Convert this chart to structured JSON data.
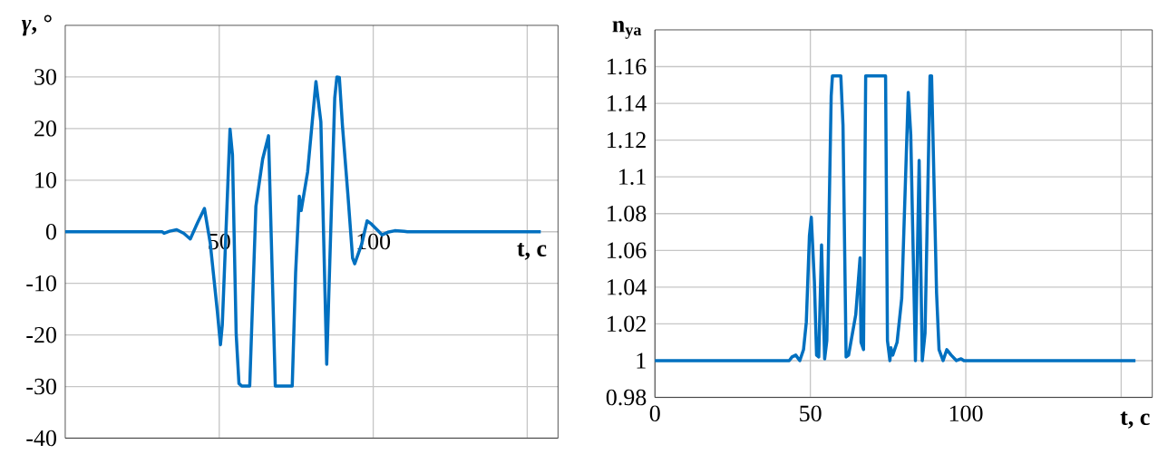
{
  "chart_data": [
    {
      "type": "line",
      "ylabel": "*γ*, °",
      "xlabel": "t, c",
      "color": "#0070c0",
      "grid": true,
      "xlim": [
        0,
        160
      ],
      "ylim": [
        -40,
        40
      ],
      "xticks": [
        50,
        100,
        {
          "value": 150,
          "label": null
        }
      ],
      "yticks": [
        -40,
        -30,
        -20,
        -10,
        0,
        10,
        20,
        30
      ],
      "x": [
        0,
        31.5,
        32.1,
        33.9,
        36.2,
        38.5,
        40.6,
        43,
        45.2,
        47.1,
        49.4,
        50.4,
        51,
        53.5,
        54.3,
        55.5,
        56.4,
        57.3,
        59.9,
        61.9,
        64.1,
        66,
        68.2,
        73.7,
        74.8,
        76,
        76.6,
        78.7,
        80.2,
        81.4,
        83,
        84.9,
        86.3,
        87.5,
        88.2,
        89,
        90,
        91.8,
        93.3,
        94,
        96.3,
        98,
        99.4,
        102.9,
        104.7,
        107,
        110,
        111.1,
        154.4
      ],
      "values": [
        0,
        0,
        -0.3,
        0.1,
        0.4,
        -0.3,
        -1.4,
        1.8,
        4.5,
        -2.3,
        -15.5,
        -21.9,
        -18,
        19.9,
        14.9,
        -19.8,
        -29.4,
        -29.9,
        -29.9,
        4.9,
        14.1,
        18.6,
        -29.9,
        -29.9,
        -8,
        6.9,
        4.1,
        11.6,
        21.3,
        29.1,
        21.3,
        -25.7,
        2,
        25.9,
        30,
        29.9,
        20.6,
        7,
        -5.1,
        -6.2,
        -2.3,
        2.1,
        1.5,
        -0.6,
        -0.1,
        0.2,
        0.1,
        0,
        0
      ]
    },
    {
      "type": "line",
      "ylabel": "n$_{ya}$",
      "xlabel": "t, c",
      "color": "#0070c0",
      "grid": true,
      "xlim": [
        0,
        160
      ],
      "ylim": [
        0.98,
        1.18
      ],
      "xticks": [
        0,
        50,
        100,
        {
          "value": 150,
          "label": null
        }
      ],
      "yticks": [
        0.98,
        1,
        1.02,
        1.04,
        1.06,
        1.08,
        1.1,
        1.12,
        1.14,
        1.16
      ],
      "x": [
        0,
        43.2,
        44.1,
        45.3,
        46.6,
        47.8,
        48.7,
        49.7,
        50.3,
        51.3,
        52,
        52.7,
        53.6,
        54.6,
        55.3,
        56.7,
        57.1,
        59.8,
        60.5,
        61.5,
        62.3,
        64.6,
        66,
        66.3,
        67.1,
        67.8,
        74.2,
        74.8,
        75.6,
        75.9,
        76.5,
        77.9,
        79.4,
        81.5,
        82.3,
        83.8,
        85,
        86,
        86.9,
        88.5,
        89,
        90.6,
        91.4,
        92.7,
        93.9,
        95.3,
        97,
        98.5,
        99.4,
        154.6
      ],
      "values": [
        1,
        1,
        1.002,
        1.003,
        1,
        1.006,
        1.021,
        1.068,
        1.078,
        1.043,
        1.003,
        1.002,
        1.063,
        1.001,
        1.011,
        1.144,
        1.155,
        1.155,
        1.128,
        1.002,
        1.003,
        1.025,
        1.056,
        1.01,
        1.006,
        1.155,
        1.155,
        1.011,
        1,
        1.007,
        1.003,
        1.01,
        1.034,
        1.146,
        1.123,
        1,
        1.109,
        1,
        1.015,
        1.155,
        1.155,
        1.037,
        1.006,
        1,
        1.006,
        1.003,
        1,
        1.001,
        1,
        1
      ]
    }
  ]
}
